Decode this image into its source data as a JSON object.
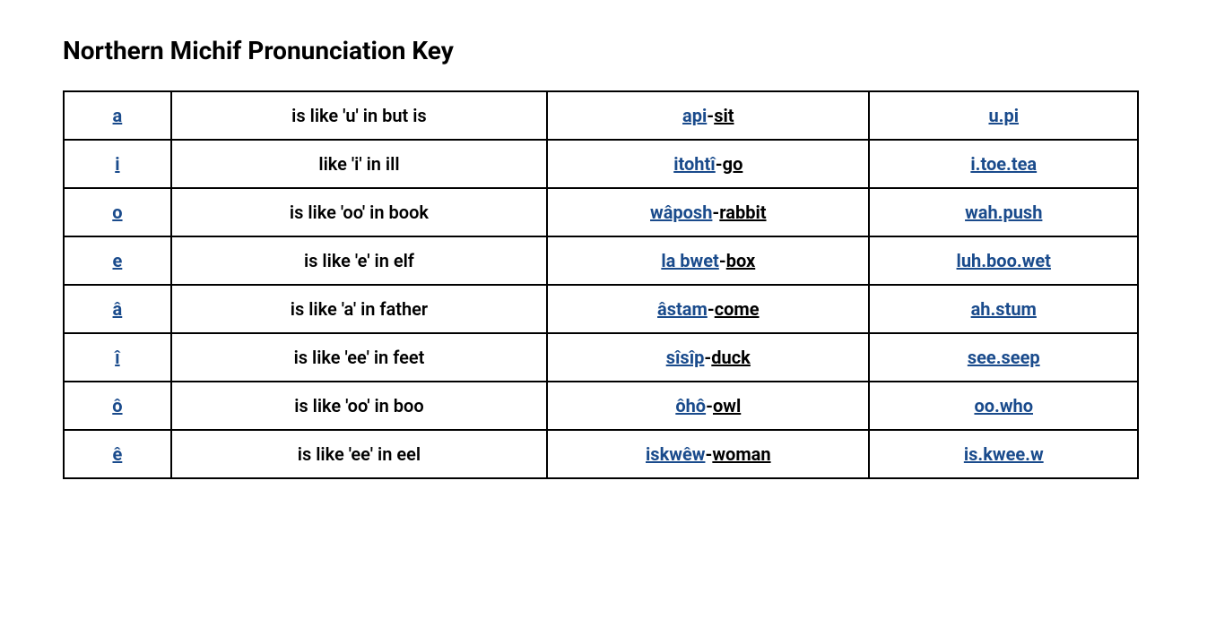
{
  "title": "Northern Michif Pronunciation Key",
  "colors": {
    "link_color": "#1a4b8c",
    "text_color": "#000000",
    "border_color": "#000000",
    "background_color": "#ffffff"
  },
  "columns": {
    "letter_width_pct": 10,
    "description_width_pct": 35,
    "example_width_pct": 30,
    "phonetic_width_pct": 25
  },
  "rows": [
    {
      "letter": "a",
      "description": "is like 'u' in but is",
      "example_michif": "api",
      "example_sep": "-",
      "example_english": "sit",
      "phonetic": "u.pi "
    },
    {
      "letter": "i",
      "description": "like 'i' in ill",
      "example_michif": "itohtî",
      "example_sep": "-",
      "example_english": "go",
      "phonetic": "i.toe.tea"
    },
    {
      "letter": "o",
      "description": "is like 'oo' in book",
      "example_michif": "wâposh",
      "example_sep": "-",
      "example_english": "rabbit",
      "phonetic": "wah.push"
    },
    {
      "letter": "e",
      "description": "is like 'e' in elf",
      "example_michif": "la bwet",
      "example_sep": "-",
      "example_english": "box",
      "phonetic": "luh.boo.wet"
    },
    {
      "letter": "â",
      "description": "is like 'a' in father",
      "example_michif": "âstam",
      "example_sep": "-",
      "example_english": "come",
      "phonetic": "ah.stum"
    },
    {
      "letter": "î",
      "description": "is like 'ee' in feet",
      "example_michif": "sîsîp",
      "example_sep": "-",
      "example_english": "duck",
      "phonetic": "see.seep"
    },
    {
      "letter": "ô",
      "description": "is like 'oo' in boo",
      "example_michif": "ôhô",
      "example_sep": "-",
      "example_english": "owl",
      "phonetic": "oo.who"
    },
    {
      "letter": "ê",
      "description": "is like 'ee' in eel",
      "example_michif": "iskwêw",
      "example_sep": "-",
      "example_english": "woman",
      "phonetic": "is.kwee.w"
    }
  ]
}
